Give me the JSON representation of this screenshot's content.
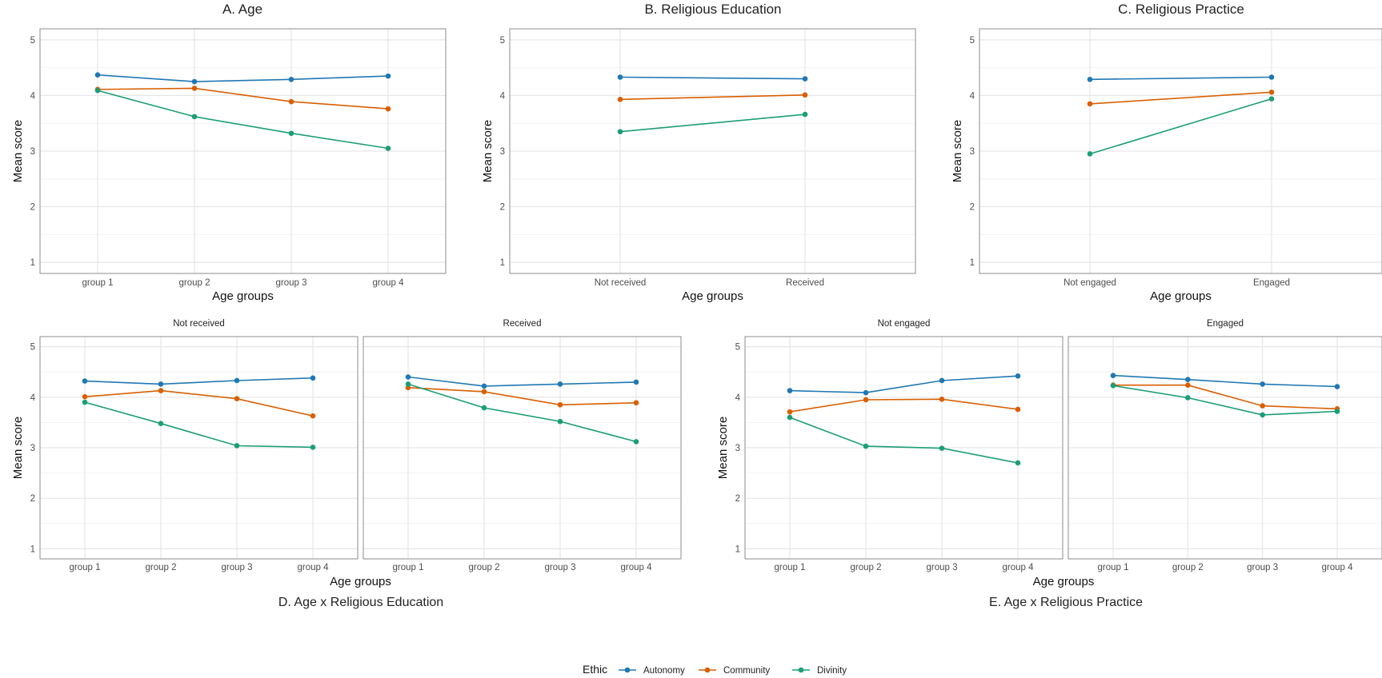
{
  "colors": {
    "Autonomy": "#1f78b4",
    "Community": "#d95f02",
    "Divinity": "#1b9e77",
    "grid_major": "#e6e6e6",
    "grid_minor": "#f3f3f3",
    "panel_border": "#8c8c8c"
  },
  "legend": {
    "title": "Ethic",
    "entries": [
      "Autonomy",
      "Community",
      "Divinity"
    ],
    "position": "bottom"
  },
  "chart_data": [
    {
      "id": "A",
      "type": "line",
      "title": "A.   Age",
      "xlabel": "Age groups",
      "ylabel": "Mean score",
      "categories": [
        "group 1",
        "group 2",
        "group 3",
        "group 4"
      ],
      "ylim": [
        0.8,
        5.2
      ],
      "yticks": [
        1,
        2,
        3,
        4,
        5
      ],
      "grid": true,
      "series": [
        {
          "name": "Autonomy",
          "values": [
            4.37,
            4.25,
            4.29,
            4.35
          ]
        },
        {
          "name": "Community",
          "values": [
            4.11,
            4.13,
            3.89,
            3.76
          ]
        },
        {
          "name": "Divinity",
          "values": [
            4.09,
            3.62,
            3.32,
            3.05
          ]
        }
      ]
    },
    {
      "id": "B",
      "type": "line",
      "title": "B.   Religious Education",
      "xlabel": "Age groups",
      "ylabel": "Mean score",
      "categories": [
        "Not received",
        "Received"
      ],
      "ylim": [
        0.8,
        5.2
      ],
      "yticks": [
        1,
        2,
        3,
        4,
        5
      ],
      "grid": true,
      "series": [
        {
          "name": "Autonomy",
          "values": [
            4.33,
            4.3
          ]
        },
        {
          "name": "Community",
          "values": [
            3.93,
            4.01
          ]
        },
        {
          "name": "Divinity",
          "values": [
            3.35,
            3.66
          ]
        }
      ]
    },
    {
      "id": "C",
      "type": "line",
      "title": "C.   Religious Practice",
      "xlabel": "Age groups",
      "ylabel": "Mean score",
      "categories": [
        "Not engaged",
        "Engaged"
      ],
      "ylim": [
        0.8,
        5.2
      ],
      "yticks": [
        1,
        2,
        3,
        4,
        5
      ],
      "grid": true,
      "series": [
        {
          "name": "Autonomy",
          "values": [
            4.29,
            4.33
          ]
        },
        {
          "name": "Community",
          "values": [
            3.85,
            4.06
          ]
        },
        {
          "name": "Divinity",
          "values": [
            2.95,
            3.94
          ]
        }
      ]
    },
    {
      "id": "D",
      "type": "line",
      "title": "D.   Age x Religious Education",
      "xlabel": "Age groups",
      "ylabel": "Mean score",
      "categories": [
        "group 1",
        "group 2",
        "group 3",
        "group 4"
      ],
      "ylim": [
        0.8,
        5.2
      ],
      "yticks": [
        1,
        2,
        3,
        4,
        5
      ],
      "grid": true,
      "facets": [
        {
          "label": "Not received",
          "series": [
            {
              "name": "Autonomy",
              "values": [
                4.32,
                4.26,
                4.33,
                4.38
              ]
            },
            {
              "name": "Community",
              "values": [
                4.01,
                4.13,
                3.97,
                3.63
              ]
            },
            {
              "name": "Divinity",
              "values": [
                3.9,
                3.48,
                3.04,
                3.01
              ]
            }
          ]
        },
        {
          "label": "Received",
          "series": [
            {
              "name": "Autonomy",
              "values": [
                4.4,
                4.22,
                4.26,
                4.3
              ]
            },
            {
              "name": "Community",
              "values": [
                4.19,
                4.11,
                3.85,
                3.89
              ]
            },
            {
              "name": "Divinity",
              "values": [
                4.26,
                3.79,
                3.52,
                3.12
              ]
            }
          ]
        }
      ]
    },
    {
      "id": "E",
      "type": "line",
      "title": "E.   Age x Religious Practice",
      "xlabel": "Age groups",
      "ylabel": "Mean score",
      "categories": [
        "group 1",
        "group 2",
        "group 3",
        "group 4"
      ],
      "ylim": [
        0.8,
        5.2
      ],
      "yticks": [
        1,
        2,
        3,
        4,
        5
      ],
      "grid": true,
      "facets": [
        {
          "label": "Not engaged",
          "series": [
            {
              "name": "Autonomy",
              "values": [
                4.13,
                4.09,
                4.33,
                4.42
              ]
            },
            {
              "name": "Community",
              "values": [
                3.71,
                3.95,
                3.96,
                3.76
              ]
            },
            {
              "name": "Divinity",
              "values": [
                3.6,
                3.03,
                2.99,
                2.7
              ]
            }
          ]
        },
        {
          "label": "Engaged",
          "series": [
            {
              "name": "Autonomy",
              "values": [
                4.43,
                4.35,
                4.26,
                4.21
              ]
            },
            {
              "name": "Community",
              "values": [
                4.24,
                4.24,
                3.83,
                3.77
              ]
            },
            {
              "name": "Divinity",
              "values": [
                4.23,
                3.99,
                3.65,
                3.72
              ]
            }
          ]
        }
      ]
    }
  ]
}
